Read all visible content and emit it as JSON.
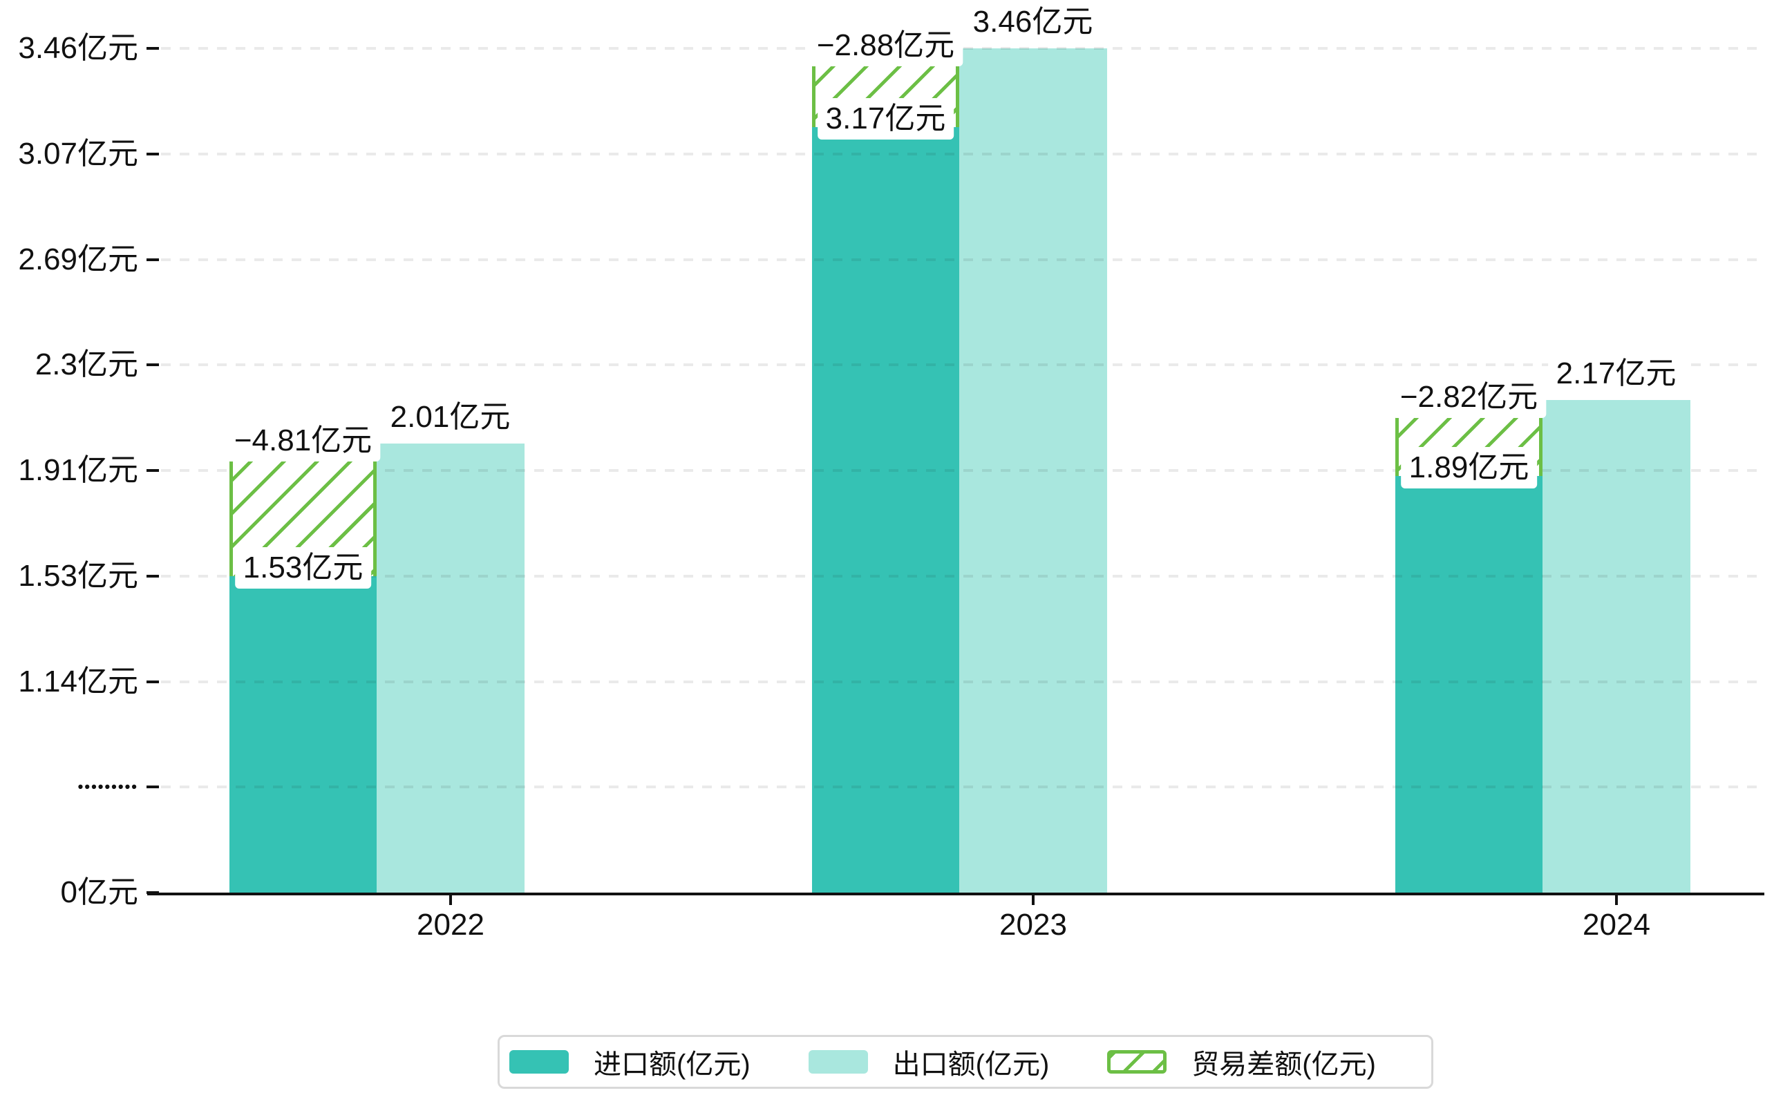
{
  "chart_data": {
    "type": "bar",
    "categories": [
      "2022",
      "2023",
      "2024"
    ],
    "series": [
      {
        "name": "进口额(亿元)",
        "role": "import",
        "color": "#35c2b4",
        "values": [
          1.53,
          3.17,
          1.89
        ],
        "labels": [
          "1.53亿元",
          "3.17亿元",
          "1.89亿元"
        ]
      },
      {
        "name": "出口额(亿元)",
        "role": "export",
        "color": "#a9e7de",
        "values": [
          2.01,
          3.46,
          2.17
        ],
        "labels": [
          "2.01亿元",
          "3.46亿元",
          "2.17亿元"
        ]
      },
      {
        "name": "贸易差额(亿元)",
        "role": "trade-balance",
        "color": "#6cbf45",
        "style": "green-hatch-outline",
        "values": [
          -4.81,
          -2.88,
          -2.82
        ],
        "labels": [
          "−4.81亿元",
          "−2.88亿元",
          "−2.82亿元"
        ]
      }
    ],
    "y_axis": {
      "unit": "亿元",
      "min": 0,
      "max": 3.46,
      "tick_labels_bottom_to_top": [
        "0亿元",
        "•••••••••",
        "1.14亿元",
        "1.53亿元",
        "1.91亿元",
        "2.3亿元",
        "2.69亿元",
        "3.07亿元",
        "3.46亿元"
      ]
    },
    "grid": "dashed-horizontal",
    "legend_position": "bottom",
    "title": ""
  },
  "colors": {
    "import": "#35c2b4",
    "export": "#a9e7de",
    "balance_green": "#6cbf45",
    "axis": "#111111",
    "background": "#ffffff",
    "legend_border": "#d9d9d9"
  }
}
